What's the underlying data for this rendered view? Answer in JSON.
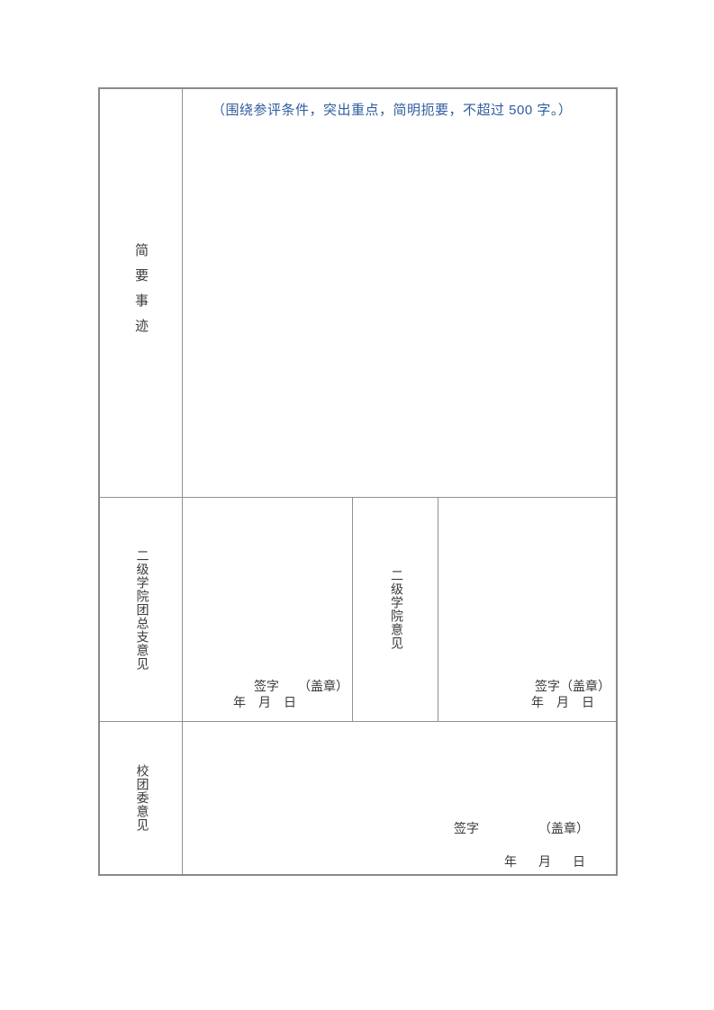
{
  "colors": {
    "note_blue": "#2f5d9e",
    "border_gray": "#8a8a8a",
    "text_dark": "#3a3a3a",
    "page_bg": "#ffffff"
  },
  "form": {
    "brief_deeds": {
      "label": "简要事迹",
      "note": "（围绕参评条件，突出重点，简明扼要，不超过 500 字。）"
    },
    "college_league_branch": {
      "label": "二级学院团总支意见",
      "sign": "签字",
      "seal": "（盖章）",
      "date": "年　月　日"
    },
    "college": {
      "label": "二级学院意见",
      "sign": "签字",
      "seal": "（盖章）",
      "date": "年　月　日"
    },
    "university_league_committee": {
      "label": "校团委意见",
      "sign": "签字",
      "seal": "（盖章）",
      "date": "年　月　日"
    }
  }
}
